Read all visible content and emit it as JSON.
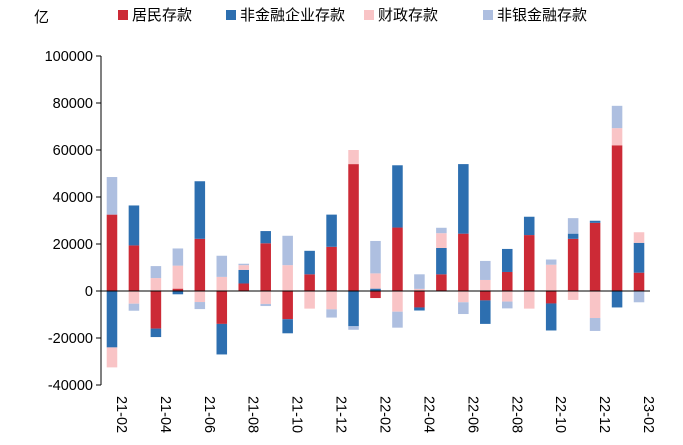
{
  "chart_data": {
    "type": "bar",
    "stacked": true,
    "unit": "亿",
    "ylim": [
      -40000,
      100000
    ],
    "yticks": [
      100000,
      80000,
      60000,
      40000,
      20000,
      0,
      -20000,
      -40000
    ],
    "ytick_labels": [
      "100000",
      "80000",
      "60000",
      "40000",
      "20000",
      "0",
      "-20000",
      "-40000"
    ],
    "grid": false,
    "legend_position": "top",
    "categories": [
      "21-02",
      "21-03",
      "21-04",
      "21-05",
      "21-06",
      "21-07",
      "21-08",
      "21-09",
      "21-10",
      "21-11",
      "21-12",
      "22-01",
      "22-02",
      "22-03",
      "22-04",
      "22-05",
      "22-06",
      "22-07",
      "22-08",
      "22-09",
      "22-10",
      "22-11",
      "22-12",
      "23-01",
      "23-02"
    ],
    "xtick_labels": [
      "21-02",
      "21-04",
      "21-06",
      "21-08",
      "21-10",
      "21-12",
      "22-02",
      "22-04",
      "22-06",
      "22-08",
      "22-10",
      "22-12",
      "23-02"
    ],
    "series": [
      {
        "name": "居民存款",
        "color": "#cc2a36",
        "values": [
          32500,
          19400,
          -16000,
          1000,
          22200,
          -14000,
          3200,
          20300,
          -12000,
          7100,
          18800,
          54000,
          -3000,
          27000,
          -7000,
          7100,
          24400,
          -4000,
          8100,
          23800,
          -5300,
          22200,
          29000,
          62000,
          7800
        ]
      },
      {
        "name": "非金融企业存款",
        "color": "#2d6fb0",
        "values": [
          -24000,
          17000,
          -3600,
          -1400,
          24500,
          -13000,
          5800,
          5200,
          -6000,
          10000,
          13700,
          -15000,
          1000,
          26500,
          -1300,
          11200,
          29600,
          -10000,
          9800,
          7800,
          -11500,
          2200,
          900,
          -7000,
          12700
        ]
      },
      {
        "name": "财政存款",
        "color": "#f9c4c6",
        "values": [
          -8500,
          -5400,
          5500,
          9800,
          -4700,
          6000,
          2000,
          -5500,
          11000,
          -7500,
          -7800,
          6000,
          6500,
          -8800,
          900,
          6300,
          -4800,
          4700,
          -4500,
          -7500,
          11200,
          -3800,
          -11500,
          7300,
          4500
        ]
      },
      {
        "name": "非银金融存款",
        "color": "#aebfe0",
        "values": [
          16000,
          -3000,
          5100,
          7300,
          -3000,
          9000,
          600,
          -900,
          12500,
          0,
          -3500,
          -1500,
          13800,
          -6800,
          6200,
          2300,
          -5000,
          8100,
          -2900,
          0,
          2200,
          6600,
          -5500,
          9500,
          -4800
        ]
      }
    ]
  }
}
